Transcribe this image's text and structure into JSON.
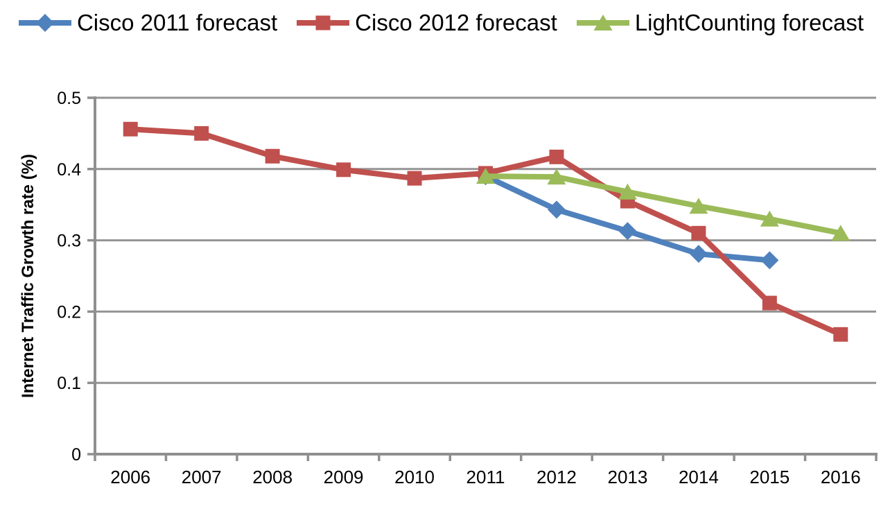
{
  "chart_data": {
    "type": "line",
    "title": "",
    "xlabel": "",
    "ylabel": "Internet Traffic Growth rate (%)",
    "ylim": [
      0,
      0.5
    ],
    "yticks": [
      0,
      0.1,
      0.2,
      0.3,
      0.4,
      0.5
    ],
    "ytick_labels": [
      "0",
      "0.1",
      "0.2",
      "0.3",
      "0.4",
      "0.5"
    ],
    "grid": true,
    "legend_position": "top",
    "categories": [
      "2006",
      "2007",
      "2008",
      "2009",
      "2010",
      "2011",
      "2012",
      "2013",
      "2014",
      "2015",
      "2016"
    ],
    "series": [
      {
        "name": "Cisco 2011 forecast",
        "marker": "diamond",
        "color": "#4F81BD",
        "values": [
          null,
          null,
          null,
          null,
          null,
          0.39,
          0.343,
          0.313,
          0.281,
          0.272,
          null
        ]
      },
      {
        "name": "Cisco 2012 forecast",
        "marker": "square",
        "color": "#C0504D",
        "values": [
          0.456,
          0.45,
          0.418,
          0.399,
          0.387,
          0.394,
          0.417,
          0.355,
          0.31,
          0.212,
          0.168
        ]
      },
      {
        "name": "LightCounting forecast",
        "marker": "triangle",
        "color": "#9BBB59",
        "values": [
          null,
          null,
          null,
          null,
          null,
          0.39,
          0.389,
          0.368,
          0.348,
          0.33,
          0.31
        ]
      }
    ],
    "colors": {
      "axis": "#8F8F8F",
      "gridline": "#949494",
      "text": "#000000",
      "background": "#FFFFFF"
    }
  }
}
